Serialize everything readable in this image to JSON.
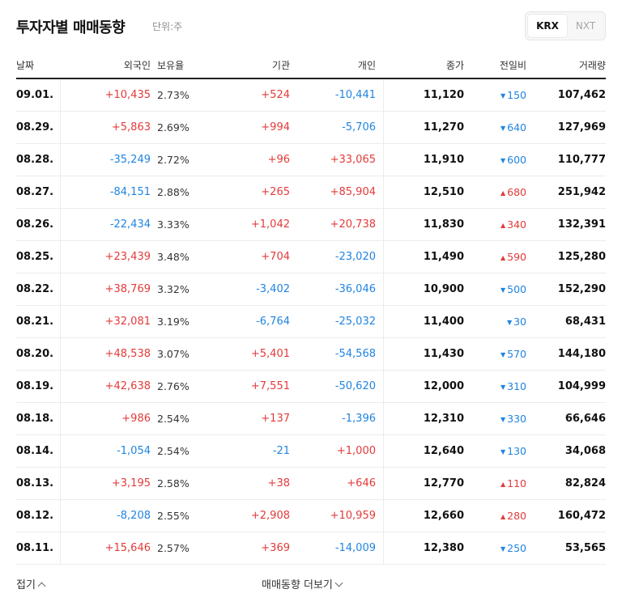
{
  "header": {
    "title": "투자자별 매매동향",
    "unit": "단위:주"
  },
  "market_toggle": {
    "active": "KRX",
    "inactive": "NXT"
  },
  "columns": {
    "date": "날짜",
    "foreign": "외국인",
    "ratio": "보유율",
    "inst": "기관",
    "indiv": "개인",
    "close": "종가",
    "change": "전일비",
    "volume": "거래량"
  },
  "rows": [
    {
      "date": "09.01.",
      "foreign": "+10,435",
      "foreign_dir": "up",
      "ratio": "2.73%",
      "inst": "+524",
      "inst_dir": "up",
      "indiv": "-10,441",
      "indiv_dir": "down",
      "close": "11,120",
      "change": "150",
      "change_dir": "down",
      "volume": "107,462"
    },
    {
      "date": "08.29.",
      "foreign": "+5,863",
      "foreign_dir": "up",
      "ratio": "2.69%",
      "inst": "+994",
      "inst_dir": "up",
      "indiv": "-5,706",
      "indiv_dir": "down",
      "close": "11,270",
      "change": "640",
      "change_dir": "down",
      "volume": "127,969"
    },
    {
      "date": "08.28.",
      "foreign": "-35,249",
      "foreign_dir": "down",
      "ratio": "2.72%",
      "inst": "+96",
      "inst_dir": "up",
      "indiv": "+33,065",
      "indiv_dir": "up",
      "close": "11,910",
      "change": "600",
      "change_dir": "down",
      "volume": "110,777"
    },
    {
      "date": "08.27.",
      "foreign": "-84,151",
      "foreign_dir": "down",
      "ratio": "2.88%",
      "inst": "+265",
      "inst_dir": "up",
      "indiv": "+85,904",
      "indiv_dir": "up",
      "close": "12,510",
      "change": "680",
      "change_dir": "up",
      "volume": "251,942"
    },
    {
      "date": "08.26.",
      "foreign": "-22,434",
      "foreign_dir": "down",
      "ratio": "3.33%",
      "inst": "+1,042",
      "inst_dir": "up",
      "indiv": "+20,738",
      "indiv_dir": "up",
      "close": "11,830",
      "change": "340",
      "change_dir": "up",
      "volume": "132,391"
    },
    {
      "date": "08.25.",
      "foreign": "+23,439",
      "foreign_dir": "up",
      "ratio": "3.48%",
      "inst": "+704",
      "inst_dir": "up",
      "indiv": "-23,020",
      "indiv_dir": "down",
      "close": "11,490",
      "change": "590",
      "change_dir": "up",
      "volume": "125,280"
    },
    {
      "date": "08.22.",
      "foreign": "+38,769",
      "foreign_dir": "up",
      "ratio": "3.32%",
      "inst": "-3,402",
      "inst_dir": "down",
      "indiv": "-36,046",
      "indiv_dir": "down",
      "close": "10,900",
      "change": "500",
      "change_dir": "down",
      "volume": "152,290"
    },
    {
      "date": "08.21.",
      "foreign": "+32,081",
      "foreign_dir": "up",
      "ratio": "3.19%",
      "inst": "-6,764",
      "inst_dir": "down",
      "indiv": "-25,032",
      "indiv_dir": "down",
      "close": "11,400",
      "change": "30",
      "change_dir": "down",
      "volume": "68,431"
    },
    {
      "date": "08.20.",
      "foreign": "+48,538",
      "foreign_dir": "up",
      "ratio": "3.07%",
      "inst": "+5,401",
      "inst_dir": "up",
      "indiv": "-54,568",
      "indiv_dir": "down",
      "close": "11,430",
      "change": "570",
      "change_dir": "down",
      "volume": "144,180"
    },
    {
      "date": "08.19.",
      "foreign": "+42,638",
      "foreign_dir": "up",
      "ratio": "2.76%",
      "inst": "+7,551",
      "inst_dir": "up",
      "indiv": "-50,620",
      "indiv_dir": "down",
      "close": "12,000",
      "change": "310",
      "change_dir": "down",
      "volume": "104,999"
    },
    {
      "date": "08.18.",
      "foreign": "+986",
      "foreign_dir": "up",
      "ratio": "2.54%",
      "inst": "+137",
      "inst_dir": "up",
      "indiv": "-1,396",
      "indiv_dir": "down",
      "close": "12,310",
      "change": "330",
      "change_dir": "down",
      "volume": "66,646"
    },
    {
      "date": "08.14.",
      "foreign": "-1,054",
      "foreign_dir": "down",
      "ratio": "2.54%",
      "inst": "-21",
      "inst_dir": "down",
      "indiv": "+1,000",
      "indiv_dir": "up",
      "close": "12,640",
      "change": "130",
      "change_dir": "down",
      "volume": "34,068"
    },
    {
      "date": "08.13.",
      "foreign": "+3,195",
      "foreign_dir": "up",
      "ratio": "2.58%",
      "inst": "+38",
      "inst_dir": "up",
      "indiv": "+646",
      "indiv_dir": "up",
      "close": "12,770",
      "change": "110",
      "change_dir": "up",
      "volume": "82,824"
    },
    {
      "date": "08.12.",
      "foreign": "-8,208",
      "foreign_dir": "down",
      "ratio": "2.55%",
      "inst": "+2,908",
      "inst_dir": "up",
      "indiv": "+10,959",
      "indiv_dir": "up",
      "close": "12,660",
      "change": "280",
      "change_dir": "up",
      "volume": "160,472"
    },
    {
      "date": "08.11.",
      "foreign": "+15,646",
      "foreign_dir": "up",
      "ratio": "2.57%",
      "inst": "+369",
      "inst_dir": "up",
      "indiv": "-14,009",
      "indiv_dir": "down",
      "close": "12,380",
      "change": "250",
      "change_dir": "down",
      "volume": "53,565"
    }
  ],
  "footer": {
    "fold_label": "접기",
    "more_label": "매매동향 더보기"
  },
  "colors": {
    "up": "#e33a3a",
    "down": "#1f84e0"
  }
}
